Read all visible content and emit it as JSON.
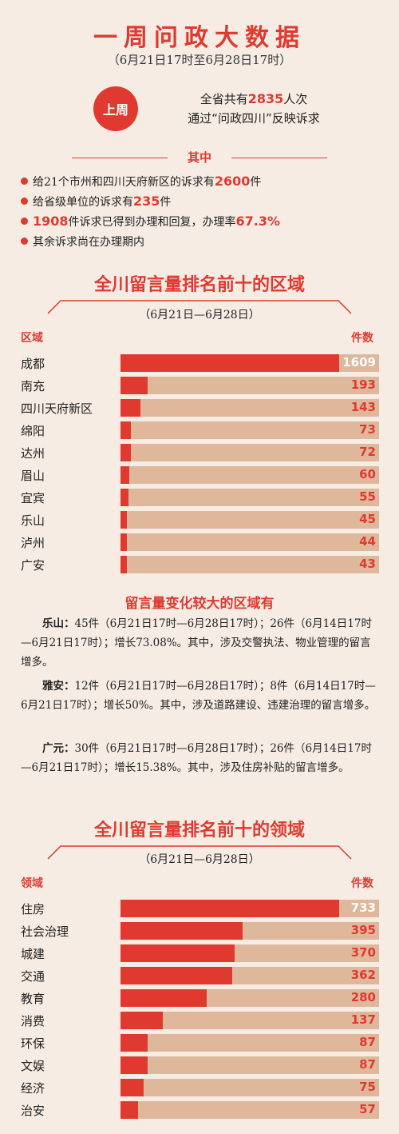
{
  "header": {
    "title": "一周问政大数据",
    "subtitle": "（6月21日17时至6月28日17时）",
    "badge": "上周",
    "summary_line1_pre": "全省共有",
    "summary_line1_num": "2835",
    "summary_line1_post": "人次",
    "summary_line2": "通过“问政四川”反映诉求"
  },
  "among_label": "其中",
  "bullets": [
    {
      "pre": "给21个市州和四川天府新区的诉求有",
      "num": "2600",
      "post": "件"
    },
    {
      "pre": "给省级单位的诉求有",
      "num": "235",
      "post": "件"
    },
    {
      "pre": "",
      "num": "1908",
      "post": "件诉求已得到办理和回复，办理率",
      "num2": "67.3%"
    },
    {
      "pre": "其余诉求尚在办理期内",
      "num": "",
      "post": ""
    }
  ],
  "region_section": {
    "title": "全川留言量排名前十的区域",
    "subtitle": "（6月21日—6月28日）",
    "col_left": "区域",
    "col_right": "件数"
  },
  "change": {
    "title": "留言量变化较大的区域有",
    "items": [
      {
        "name": "乐山：",
        "text": "45件（6月21日17时—6月28日17时）；26件（6月14日17时—6月21日17时）；增长73.08%。其中，涉及交警执法、物业管理的留言增多。"
      },
      {
        "name": "雅安：",
        "text": "12件（6月21日17时—6月28日17时）；8件（6月14日17时—6月21日17时）；增长50%。其中，涉及道路建设、违建治理的留言增多。"
      },
      {
        "name": "广元：",
        "text": "30件（6月21日17时—6月28日17时）；26件（6月14日17时—6月21日17时）；增长15.38%。其中，涉及住房补贴的留言增多。"
      }
    ]
  },
  "field_section": {
    "title": "全川留言量排名前十的领域",
    "subtitle": "（6月21日—6月28日）",
    "col_left": "领域",
    "col_right": "件数"
  },
  "colors": {
    "accent": "#e03a30",
    "track": "#dfb89c",
    "background": "#f6ece4"
  },
  "chart_data": [
    {
      "type": "bar",
      "title": "全川留言量排名前十的区域",
      "categories": [
        "成都",
        "南充",
        "四川天府新区",
        "绵阳",
        "达州",
        "眉山",
        "宜宾",
        "乐山",
        "泸州",
        "广安"
      ],
      "values": [
        1609,
        193,
        143,
        73,
        72,
        60,
        55,
        45,
        44,
        43
      ],
      "xlabel": "区域",
      "ylabel": "件数"
    },
    {
      "type": "bar",
      "title": "全川留言量排名前十的领域",
      "categories": [
        "住房",
        "社会治理",
        "城建",
        "交通",
        "教育",
        "消费",
        "环保",
        "文娱",
        "经济",
        "治安"
      ],
      "values": [
        733,
        395,
        370,
        362,
        280,
        137,
        87,
        87,
        75,
        57
      ],
      "xlabel": "领域",
      "ylabel": "件数"
    }
  ]
}
